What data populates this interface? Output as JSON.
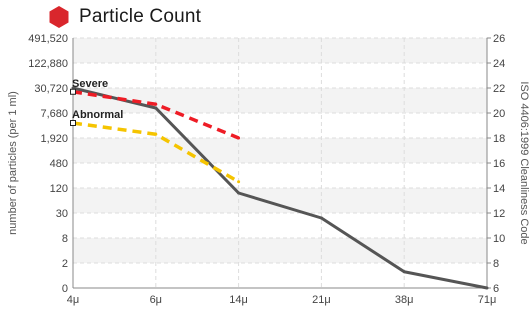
{
  "header": {
    "title": "Particle Count",
    "icon": "hexagon-icon",
    "icon_color": "#d9262c"
  },
  "chart_data": {
    "type": "line",
    "title": "Particle Count",
    "xlabel": "",
    "ylabel": "number of particles (per 1 ml)",
    "y2label": "ISO 4406:1999 Cleanliness Code",
    "x_ticks": [
      "4μ",
      "6μ",
      "14μ",
      "21μ",
      "38μ",
      "71μ"
    ],
    "y_tick_labels": [
      "0",
      "2",
      "8",
      "30",
      "120",
      "480",
      "1,920",
      "7,680",
      "30,720",
      "122,880",
      "491,520"
    ],
    "y2_tick_labels": [
      "6",
      "8",
      "10",
      "12",
      "14",
      "16",
      "18",
      "20",
      "22",
      "24",
      "26"
    ],
    "ylim_code": [
      6,
      26
    ],
    "grid": true,
    "series": [
      {
        "name": "",
        "color": "#555555",
        "style": "solid",
        "x": [
          "4μ",
          "6μ",
          "14μ",
          "21μ",
          "38μ",
          "71μ"
        ],
        "code": [
          22,
          20.4,
          13.6,
          11.6,
          7.3,
          6.0
        ]
      },
      {
        "name": "Severe",
        "color": "#ee1c25",
        "style": "dashed",
        "x": [
          "4μ",
          "6μ",
          "14μ"
        ],
        "code": [
          21.7,
          20.7,
          18.0
        ]
      },
      {
        "name": "Abnormal",
        "color": "#f5c400",
        "style": "dashed",
        "x": [
          "4μ",
          "6μ",
          "14μ"
        ],
        "code": [
          19.2,
          18.3,
          14.5
        ]
      }
    ],
    "annotations": [
      {
        "text": "Severe",
        "x": "4μ",
        "code": 21.7
      },
      {
        "text": "Abnormal",
        "x": "4μ",
        "code": 19.2
      }
    ]
  }
}
